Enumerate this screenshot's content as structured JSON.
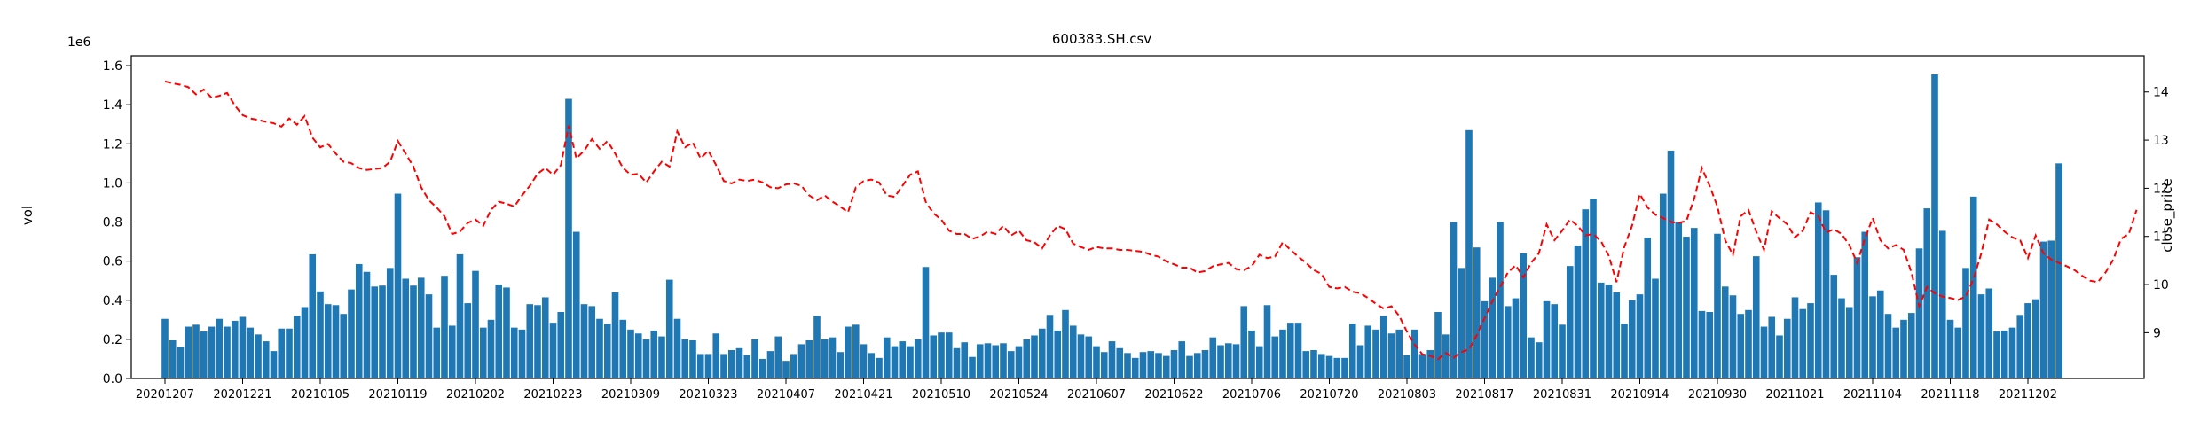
{
  "chart_data": {
    "type": "bar+line",
    "title": "600383.SH.csv",
    "ylabel_left": "vol",
    "ylabel_right": "close_price",
    "y_left_multiplier": "1e6",
    "y_left_range": [
      0,
      1.65
    ],
    "y_left_ticks": [
      "0.0",
      "0.2",
      "0.4",
      "0.6",
      "0.8",
      "1.0",
      "1.2",
      "1.4",
      "1.6"
    ],
    "y_right_range": [
      8.05,
      14.75
    ],
    "y_right_ticks": [
      "9",
      "10",
      "11",
      "12",
      "13",
      "14"
    ],
    "x_tick_labels": [
      "20201207",
      "20201221",
      "20210105",
      "20210119",
      "20210202",
      "20210223",
      "20210309",
      "20210323",
      "20210407",
      "20210421",
      "20210510",
      "20210524",
      "20210607",
      "20210622",
      "20210706",
      "20210720",
      "20210803",
      "20210817",
      "20210831",
      "20210914",
      "20210930",
      "20211021",
      "20211104",
      "20211118",
      "20211202"
    ],
    "x_tick_positions": [
      0,
      10,
      20,
      30,
      40,
      50,
      60,
      70,
      80,
      90,
      100,
      110,
      120,
      130,
      140,
      150,
      160,
      170,
      180,
      190,
      200,
      210,
      220,
      230,
      240
    ],
    "bar_color": "#1f77b4",
    "line_color": "#ff0000",
    "grid": false,
    "series": [
      {
        "axis": "left",
        "values": [
          0.305,
          0.195,
          0.16,
          0.265,
          0.275,
          0.24,
          0.265,
          0.305,
          0.265,
          0.295,
          0.315,
          0.26,
          0.225,
          0.19,
          0.14,
          0.255,
          0.255,
          0.32,
          0.365,
          0.635,
          0.445,
          0.38,
          0.375,
          0.33,
          0.455,
          0.585,
          0.545,
          0.47,
          0.475,
          0.565,
          0.945,
          0.51,
          0.475,
          0.515,
          0.43,
          0.26,
          0.525,
          0.27,
          0.635,
          0.385,
          0.55,
          0.26,
          0.3,
          0.48,
          0.465,
          0.26,
          0.25,
          0.38,
          0.375,
          0.415,
          0.285,
          0.34,
          1.43,
          0.75,
          0.38,
          0.37,
          0.305,
          0.28,
          0.44,
          0.3,
          0.25,
          0.23,
          0.2,
          0.245,
          0.215,
          0.505,
          0.305,
          0.2,
          0.195,
          0.125,
          0.125,
          0.23,
          0.125,
          0.145,
          0.155,
          0.12,
          0.2,
          0.1,
          0.14,
          0.215,
          0.09,
          0.125,
          0.175,
          0.195,
          0.32,
          0.2,
          0.21,
          0.135,
          0.265,
          0.275,
          0.175,
          0.13,
          0.105,
          0.21,
          0.165,
          0.19,
          0.165,
          0.2,
          0.57,
          0.22,
          0.235,
          0.235,
          0.155,
          0.185,
          0.11,
          0.175,
          0.18,
          0.17,
          0.18,
          0.14,
          0.165,
          0.2,
          0.22,
          0.255,
          0.325,
          0.245,
          0.35,
          0.27,
          0.225,
          0.215,
          0.165,
          0.135,
          0.19,
          0.155,
          0.13,
          0.105,
          0.135,
          0.14,
          0.13,
          0.115,
          0.145,
          0.19,
          0.115,
          0.13,
          0.145,
          0.21,
          0.17,
          0.18,
          0.175,
          0.37,
          0.245,
          0.165,
          0.375,
          0.215,
          0.25,
          0.285,
          0.285,
          0.14,
          0.145,
          0.125,
          0.115,
          0.105,
          0.105,
          0.28,
          0.17,
          0.27,
          0.25,
          0.32,
          0.23,
          0.25,
          0.12,
          0.25,
          0.125,
          0.145,
          0.34,
          0.225,
          0.8,
          0.565,
          1.27,
          0.67,
          0.395,
          0.515,
          0.8,
          0.37,
          0.41,
          0.64,
          0.21,
          0.185,
          0.395,
          0.38,
          0.275,
          0.575,
          0.68,
          0.865,
          0.92,
          0.49,
          0.48,
          0.44,
          0.28,
          0.4,
          0.43,
          0.72,
          0.51,
          0.945,
          1.165,
          0.8,
          0.725,
          0.77,
          0.345,
          0.34,
          0.74,
          0.47,
          0.425,
          0.33,
          0.35,
          0.625,
          0.265,
          0.315,
          0.22,
          0.305,
          0.415,
          0.355,
          0.385,
          0.9,
          0.86,
          0.53,
          0.41,
          0.365,
          0.62,
          0.75,
          0.42,
          0.45,
          0.33,
          0.26,
          0.3,
          0.335,
          0.665,
          0.87,
          1.555,
          0.755,
          0.3,
          0.26,
          0.565,
          0.93,
          0.43,
          0.46,
          0.24,
          0.245,
          0.26,
          0.325,
          0.385,
          0.405,
          0.7,
          0.705,
          1.1
        ]
      },
      {
        "axis": "right",
        "values": [
          14.22,
          14.18,
          14.15,
          14.1,
          13.95,
          14.05,
          13.88,
          13.92,
          13.98,
          13.72,
          13.52,
          13.45,
          13.42,
          13.38,
          13.35,
          13.28,
          13.45,
          13.32,
          13.5,
          13.05,
          12.85,
          12.92,
          12.72,
          12.55,
          12.52,
          12.42,
          12.38,
          12.4,
          12.42,
          12.55,
          12.98,
          12.72,
          12.45,
          12.02,
          11.75,
          11.6,
          11.42,
          11.05,
          11.1,
          11.28,
          11.35,
          11.22,
          11.55,
          11.72,
          11.68,
          11.62,
          11.85,
          12.05,
          12.3,
          12.42,
          12.28,
          12.48,
          13.3,
          12.62,
          12.78,
          13.02,
          12.82,
          12.98,
          12.72,
          12.42,
          12.28,
          12.3,
          12.12,
          12.35,
          12.55,
          12.45,
          13.18,
          12.85,
          12.95,
          12.62,
          12.78,
          12.48,
          12.15,
          12.1,
          12.18,
          12.15,
          12.18,
          12.12,
          12.02,
          12.0,
          12.08,
          12.1,
          12.05,
          11.85,
          11.75,
          11.85,
          11.72,
          11.62,
          11.5,
          12.02,
          12.15,
          12.18,
          12.12,
          11.85,
          11.82,
          12.05,
          12.28,
          12.35,
          11.72,
          11.48,
          11.35,
          11.12,
          11.05,
          11.05,
          10.95,
          11.0,
          11.1,
          11.05,
          11.22,
          11.02,
          11.12,
          10.92,
          10.88,
          10.75,
          11.02,
          11.22,
          11.15,
          10.85,
          10.78,
          10.72,
          10.78,
          10.75,
          10.75,
          10.72,
          10.72,
          10.7,
          10.68,
          10.62,
          10.58,
          10.48,
          10.42,
          10.35,
          10.35,
          10.25,
          10.28,
          10.38,
          10.42,
          10.45,
          10.32,
          10.3,
          10.38,
          10.62,
          10.55,
          10.58,
          10.88,
          10.72,
          10.58,
          10.45,
          10.3,
          10.22,
          9.95,
          9.92,
          9.95,
          9.85,
          9.82,
          9.72,
          9.6,
          9.5,
          9.55,
          9.35,
          9.02,
          8.75,
          8.55,
          8.52,
          8.45,
          8.58,
          8.48,
          8.6,
          8.65,
          8.95,
          9.3,
          9.65,
          9.95,
          10.25,
          10.4,
          10.15,
          10.45,
          10.65,
          11.25,
          10.92,
          11.12,
          11.35,
          11.22,
          11.02,
          11.05,
          10.9,
          10.6,
          10.05,
          10.78,
          11.22,
          11.88,
          11.6,
          11.45,
          11.38,
          11.3,
          11.28,
          11.32,
          11.78,
          12.42,
          12.05,
          11.62,
          10.92,
          10.62,
          11.42,
          11.55,
          11.1,
          10.72,
          11.52,
          11.38,
          11.25,
          10.98,
          11.12,
          11.5,
          11.42,
          11.08,
          11.15,
          11.05,
          10.82,
          10.45,
          10.95,
          11.38,
          10.92,
          10.75,
          10.82,
          10.72,
          10.25,
          9.55,
          9.95,
          9.82,
          9.75,
          9.72,
          9.68,
          9.75,
          10.12,
          10.65,
          11.35,
          11.25,
          11.1,
          10.98,
          10.92,
          10.55,
          11.02,
          10.65,
          10.52,
          10.45,
          10.38,
          10.3,
          10.18,
          10.08,
          10.05,
          10.25,
          10.52,
          10.95,
          11.05,
          11.55
        ]
      }
    ]
  }
}
